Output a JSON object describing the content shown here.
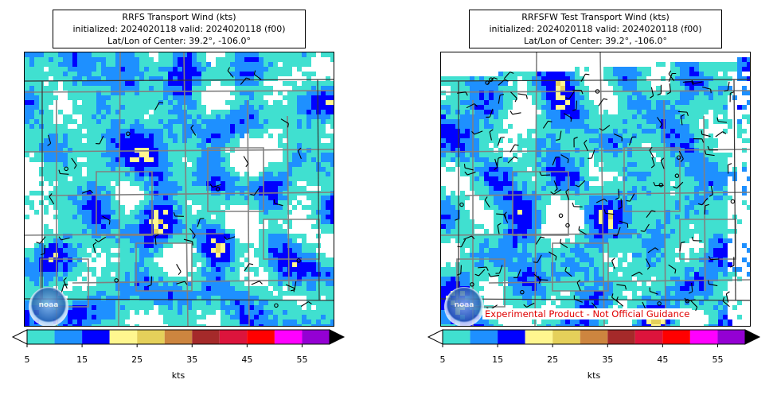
{
  "colors": {
    "bins": [
      "#40E0D0",
      "#1E90FF",
      "#0000FF",
      "#FFF68F",
      "#E5D05A",
      "#CD853F",
      "#A52A2A",
      "#DC143C",
      "#FF0000",
      "#FF00FF",
      "#9400D3"
    ],
    "under": "#ffffff",
    "over": "#000000",
    "boundary": "#808080",
    "frame": "#000000"
  },
  "panels": [
    {
      "id": "left",
      "title_line1": "RRFS Transport Wind (kts)",
      "title_line2": "initialized: 2024020118 valid: 2024020118 (f00)",
      "title_line3": "Lat/Lon of Center: 39.2°, -106.0°",
      "logo_text": "noaa",
      "colorbar": {
        "ticks": [
          "5",
          "15",
          "25",
          "35",
          "45",
          "55"
        ],
        "units": "kts"
      }
    },
    {
      "id": "right",
      "title_line1": "RRFSFW Test Transport Wind (kts)",
      "title_line2": "initialized: 2024020118 valid: 2024020118 (f00)",
      "title_line3": "Lat/Lon of Center: 39.2°, -106.0°",
      "logo_text": "noaa",
      "watermark": "Experimental Product - Not Official Guidance",
      "colorbar": {
        "ticks": [
          "5",
          "15",
          "25",
          "35",
          "45",
          "55"
        ],
        "units": "kts"
      }
    }
  ]
}
